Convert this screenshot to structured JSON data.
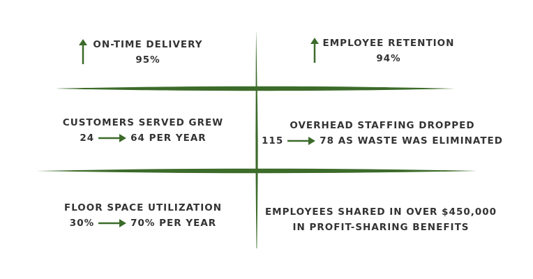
{
  "colors": {
    "accent": "#3c6b2a",
    "text": "#333333"
  },
  "metrics": {
    "on_time": {
      "icon": "up-arrow-icon",
      "label": "ON-TIME DELIVERY",
      "value": "95%"
    },
    "retention": {
      "icon": "up-arrow-icon",
      "label": "EMPLOYEE RETENTION",
      "value": "94%"
    },
    "customers": {
      "label": "CUSTOMERS SERVED GREW",
      "from": "24",
      "to": "64 PER YEAR"
    },
    "overhead": {
      "label": "OVERHEAD STAFFING DROPPED",
      "from": "115",
      "to": "78 AS WASTE WAS ELIMINATED"
    },
    "floor": {
      "label": "FLOOR SPACE UTILIZATION",
      "from": "30%",
      "to": "70% PER YEAR"
    },
    "profit": {
      "line1": "EMPLOYEES SHARED IN OVER $450,000",
      "line2": "IN PROFIT-SHARING BENEFITS"
    }
  }
}
